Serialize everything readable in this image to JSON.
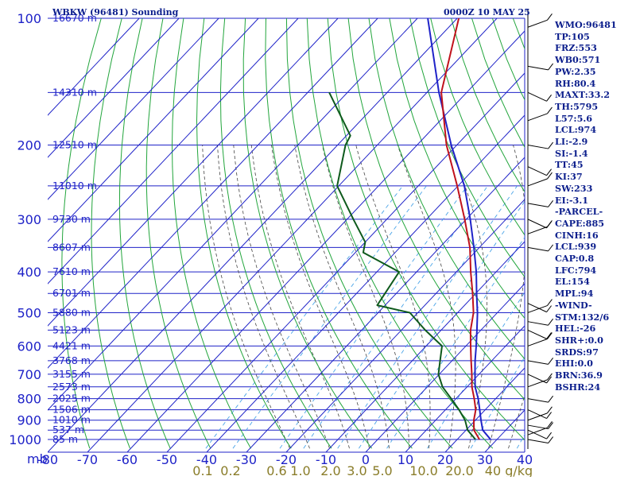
{
  "chart_data": {
    "type": "skew-t sounding",
    "title": "WBKW (96481) Sounding",
    "datetime": "0000Z 10 MAY 25",
    "y_axis_unit": "mb",
    "pressure_levels": [
      100,
      200,
      300,
      400,
      500,
      600,
      700,
      800,
      900,
      1000
    ],
    "pressure_grid_extra": [
      150,
      250,
      350,
      450,
      550,
      650,
      750,
      850,
      950
    ],
    "height_labels": [
      {
        "p": 100,
        "label": "16670 m"
      },
      {
        "p": 150,
        "label": "14310 m"
      },
      {
        "p": 200,
        "label": "12510 m"
      },
      {
        "p": 250,
        "label": "11010 m"
      },
      {
        "p": 300,
        "label": "9730 m"
      },
      {
        "p": 350,
        "label": "8607 m"
      },
      {
        "p": 400,
        "label": "7610 m"
      },
      {
        "p": 450,
        "label": "6701 m"
      },
      {
        "p": 500,
        "label": "5880 m"
      },
      {
        "p": 550,
        "label": "5123 m"
      },
      {
        "p": 600,
        "label": "4421 m"
      },
      {
        "p": 650,
        "label": "3768 m"
      },
      {
        "p": 700,
        "label": "3155 m"
      },
      {
        "p": 750,
        "label": "2573 m"
      },
      {
        "p": 800,
        "label": "2025 m"
      },
      {
        "p": 850,
        "label": "1506 m"
      },
      {
        "p": 900,
        "label": "1010 m"
      },
      {
        "p": 950,
        "label": "537 m"
      },
      {
        "p": 1000,
        "label": "85 m"
      }
    ],
    "temperature_ticks": [
      -80,
      -70,
      -60,
      -50,
      -40,
      -30,
      -20,
      -10,
      0,
      10,
      20,
      30,
      40
    ],
    "temperature_tick_labels": [
      "-80",
      "-70",
      "-60",
      "-50",
      "-40",
      "-30",
      "-20",
      "-10",
      "0",
      "10",
      "20",
      "30",
      "40"
    ],
    "mixing_ratio_labels": [
      "0.1",
      "0.2",
      "0.6",
      "1.0",
      "2.0",
      "3.0",
      "5.0",
      "10.0",
      "20.0",
      "40 g/kg"
    ],
    "mixing_ratio_values": [
      0.1,
      0.2,
      0.6,
      1.0,
      2.0,
      3.0,
      5.0,
      10.0,
      20.0,
      40.0
    ],
    "x_range_bottom_C": [
      -80,
      40
    ],
    "temperature_profile": [
      {
        "p": 1000,
        "t": 25.6
      },
      {
        "p": 950,
        "t": 22.0
      },
      {
        "p": 900,
        "t": 19.6
      },
      {
        "p": 850,
        "t": 17.6
      },
      {
        "p": 800,
        "t": 14.6
      },
      {
        "p": 750,
        "t": 11.2
      },
      {
        "p": 700,
        "t": 8.2
      },
      {
        "p": 650,
        "t": 4.8
      },
      {
        "p": 600,
        "t": 1.2
      },
      {
        "p": 550,
        "t": -2.6
      },
      {
        "p": 500,
        "t": -6.0
      },
      {
        "p": 450,
        "t": -10.8
      },
      {
        "p": 400,
        "t": -16.4
      },
      {
        "p": 350,
        "t": -22.4
      },
      {
        "p": 300,
        "t": -30.4
      },
      {
        "p": 250,
        "t": -40.2
      },
      {
        "p": 200,
        "t": -52.6
      },
      {
        "p": 150,
        "t": -66.4
      },
      {
        "p": 100,
        "t": -79.6
      }
    ],
    "dewpoint_profile": [
      {
        "p": 1000,
        "t": 24.6
      },
      {
        "p": 950,
        "t": 20.4
      },
      {
        "p": 900,
        "t": 17.4
      },
      {
        "p": 850,
        "t": 13.4
      },
      {
        "p": 800,
        "t": 8.8
      },
      {
        "p": 750,
        "t": 3.8
      },
      {
        "p": 700,
        "t": -0.2
      },
      {
        "p": 650,
        "t": -3.0
      },
      {
        "p": 600,
        "t": -6.0
      },
      {
        "p": 550,
        "t": -14.0
      },
      {
        "p": 500,
        "t": -22.0
      },
      {
        "p": 480,
        "t": -32.0
      },
      {
        "p": 400,
        "t": -34.4
      },
      {
        "p": 360,
        "t": -48.0
      },
      {
        "p": 340,
        "t": -50.0
      },
      {
        "p": 300,
        "t": -58.4
      },
      {
        "p": 250,
        "t": -70.4
      },
      {
        "p": 200,
        "t": -78.0
      },
      {
        "p": 190,
        "t": -79.0
      },
      {
        "p": 150,
        "t": -94.6
      }
    ],
    "parcel_profile": [
      {
        "p": 1000,
        "t": 28.4
      },
      {
        "p": 950,
        "t": 24.2
      },
      {
        "p": 900,
        "t": 21.4
      },
      {
        "p": 850,
        "t": 18.6
      },
      {
        "p": 800,
        "t": 15.6
      },
      {
        "p": 750,
        "t": 12.0
      },
      {
        "p": 700,
        "t": 9.0
      },
      {
        "p": 650,
        "t": 5.8
      },
      {
        "p": 600,
        "t": 2.6
      },
      {
        "p": 550,
        "t": -1.0
      },
      {
        "p": 500,
        "t": -5.0
      },
      {
        "p": 450,
        "t": -9.8
      },
      {
        "p": 400,
        "t": -15.0
      },
      {
        "p": 350,
        "t": -21.4
      },
      {
        "p": 300,
        "t": -29.0
      },
      {
        "p": 250,
        "t": -38.4
      },
      {
        "p": 200,
        "t": -51.4
      },
      {
        "p": 150,
        "t": -67.0
      },
      {
        "p": 100,
        "t": -87.4
      }
    ],
    "colors": {
      "grid": "#1f23c8",
      "dry_adiabat": "#22a53c",
      "moist_adiabat": "#444444",
      "mixing_ratio": "#4aa4e8",
      "temperature": "#c0121c",
      "dewpoint": "#0e5a1c",
      "parcel": "#1f23c8",
      "mixing_label": "#8a7d2a",
      "text": "#0b1e8c"
    }
  },
  "stats": [
    "WMO:96481",
    "TP:105",
    "FRZ:553",
    "WB0:571",
    "PW:2.35",
    "RH:80.4",
    "MAXT:33.2",
    "TH:5795",
    "L57:5.6",
    "LCL:974",
    "LI:-2.9",
    "SI:-1.4",
    "TT:45",
    "KI:37",
    "SW:233",
    "EI:-3.1",
    "-PARCEL-",
    "CAPE:885",
    "CINH:16",
    "LCL:939",
    "CAP:0.8",
    "LFC:794",
    "EL:154",
    "MPL:94",
    "-WIND-",
    "STM:132/6",
    "HEL:-26",
    "SHR+:0.0",
    "SRDS:97",
    "EHI:0.0",
    "BRN:36.9",
    "BSHR:24"
  ]
}
